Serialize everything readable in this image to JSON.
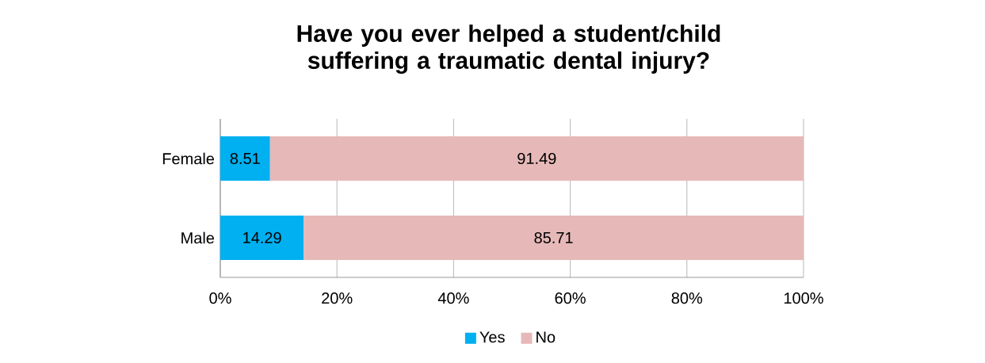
{
  "chart_data": {
    "type": "bar",
    "orientation": "horizontal",
    "stacked": true,
    "title": "Have you ever helped a student/child suffering a traumatic dental injury?",
    "categories": [
      "Female",
      "Male"
    ],
    "series": [
      {
        "name": "Yes",
        "color": "#00b0f0",
        "values": [
          8.51,
          14.29
        ],
        "value_labels": [
          "8.51",
          "14.29"
        ]
      },
      {
        "name": "No",
        "color": "#e6b9b8",
        "values": [
          91.49,
          85.71
        ],
        "value_labels": [
          "91.49",
          "85.71"
        ]
      }
    ],
    "xlim": [
      0,
      100
    ],
    "xticks": [
      {
        "value": 0,
        "label": "0%"
      },
      {
        "value": 20,
        "label": "20%"
      },
      {
        "value": 40,
        "label": "40%"
      },
      {
        "value": 60,
        "label": "60%"
      },
      {
        "value": 80,
        "label": "80%"
      },
      {
        "value": 100,
        "label": "100%"
      }
    ],
    "grid": "x",
    "legend": "bottom"
  }
}
